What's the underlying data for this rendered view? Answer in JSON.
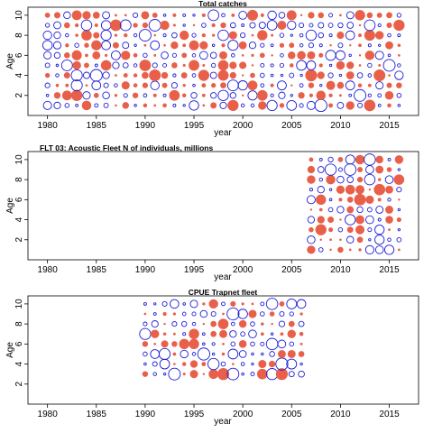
{
  "colors": {
    "positive": "#e8604a",
    "negative": "#1f1fd8"
  },
  "chart_data": [
    {
      "type": "scatter",
      "title": "Total catches",
      "xlabel": "year",
      "ylabel": "Age",
      "xlim": [
        1978,
        2018
      ],
      "ylim": [
        0,
        10.8
      ],
      "xticks": [
        1980,
        1985,
        1990,
        1995,
        2000,
        2005,
        2010,
        2015
      ],
      "yticks": [
        2,
        4,
        6,
        8,
        10
      ],
      "years": [
        1980,
        2016
      ],
      "ages": [
        1,
        10
      ],
      "legend": "none"
    },
    {
      "type": "scatter",
      "title": "FLT 03: Acoustic Fleet   N of individuals, millions",
      "xlabel": "year",
      "ylabel": "Age",
      "xlim": [
        1978,
        2018
      ],
      "ylim": [
        0,
        10.8
      ],
      "xticks": [
        1980,
        1985,
        1990,
        1995,
        2000,
        2005,
        2010,
        2015
      ],
      "yticks": [
        2,
        4,
        6,
        8,
        10
      ],
      "years": [
        2007,
        2016
      ],
      "ages": [
        1,
        10
      ],
      "legend": "none"
    },
    {
      "type": "scatter",
      "title": "CPUE Trapnet fleet",
      "xlabel": "year",
      "ylabel": "Age",
      "xlim": [
        1978,
        2018
      ],
      "ylim": [
        0,
        10.8
      ],
      "xticks": [
        1980,
        1985,
        1990,
        1995,
        2000,
        2005,
        2010,
        2015
      ],
      "yticks": [
        2,
        4,
        6,
        8,
        10
      ],
      "years": [
        1990,
        2006
      ],
      "ages": [
        3,
        10
      ],
      "legend": "none"
    }
  ]
}
